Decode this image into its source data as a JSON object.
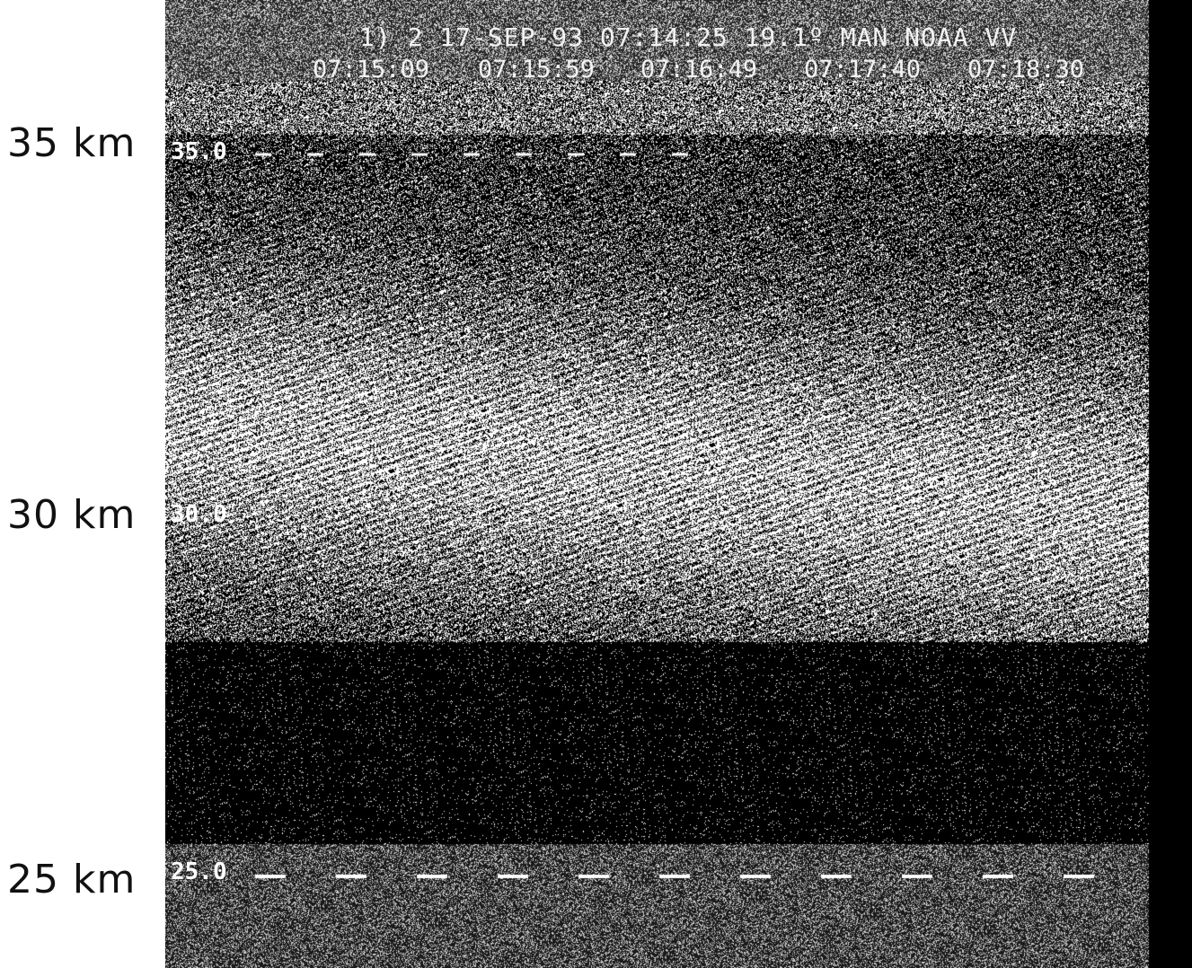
{
  "header": {
    "title": "1) 2 17-SEP-93 07:14:25 19.1º MAN NOAA VV",
    "times": [
      "07:15:09",
      "07:15:59",
      "07:16:49",
      "07:17:40",
      "07:18:30"
    ]
  },
  "altitude_labels": {
    "top": "35 km",
    "middle": "30 km",
    "bottom": "25 km"
  },
  "axis_marks": {
    "top": "35.0",
    "middle": "30.0",
    "bottom": "25.0"
  },
  "colors": {
    "background": "#000000",
    "foreground": "#ffffff",
    "page": "#ffffff"
  }
}
